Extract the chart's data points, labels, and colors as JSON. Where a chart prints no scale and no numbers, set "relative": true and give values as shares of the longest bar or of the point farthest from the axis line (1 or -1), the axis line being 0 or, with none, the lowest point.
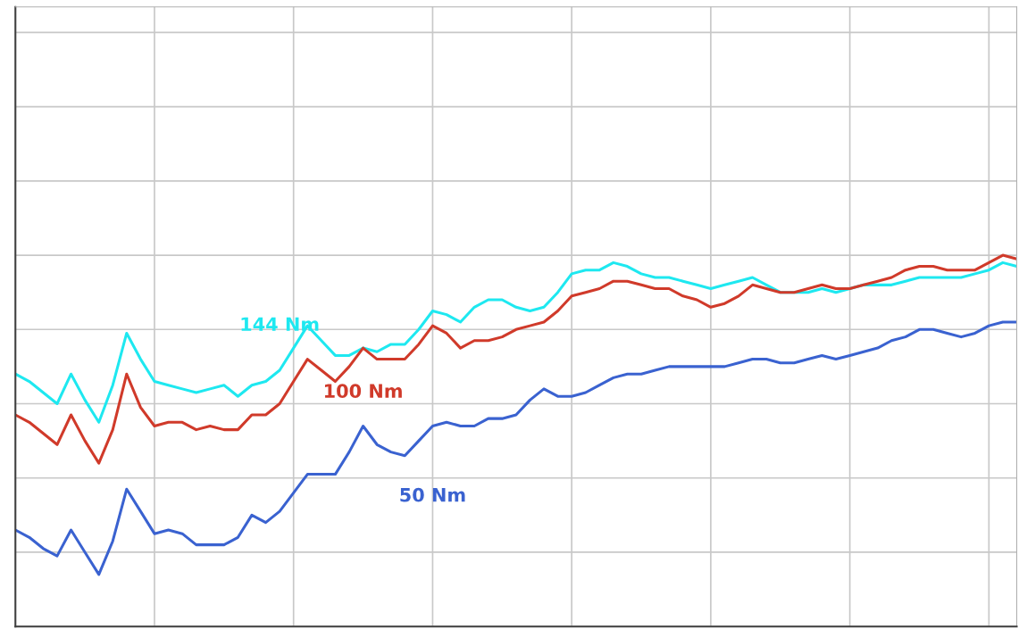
{
  "chart_data": {
    "type": "line",
    "relative": true,
    "grid": true,
    "marker": "none",
    "line_style": "solid",
    "categories": [
      null,
      null,
      null,
      null,
      null,
      null,
      null,
      null,
      null,
      null,
      null,
      null,
      null,
      null,
      null,
      null,
      null,
      null,
      null,
      null,
      null,
      null,
      null,
      null,
      null,
      null,
      null,
      null,
      null,
      null,
      null,
      null,
      null,
      null,
      null,
      null,
      null,
      null,
      null,
      null,
      null,
      null,
      null,
      null,
      null,
      null,
      null,
      null,
      null,
      null,
      null,
      null,
      null,
      null,
      null,
      null,
      null,
      null,
      null,
      null,
      null,
      null,
      null,
      null,
      null,
      null,
      null,
      null,
      null,
      null,
      null,
      null,
      null
    ],
    "series": [
      {
        "name": "144 Nm",
        "color": "#1ee8f0",
        "values": [
          0.68,
          0.66,
          0.63,
          0.6,
          0.68,
          0.61,
          0.55,
          0.65,
          0.79,
          0.72,
          0.66,
          0.65,
          0.64,
          0.63,
          0.64,
          0.65,
          0.62,
          0.65,
          0.66,
          0.69,
          0.75,
          0.81,
          0.77,
          0.73,
          0.73,
          0.75,
          0.74,
          0.76,
          0.76,
          0.8,
          0.85,
          0.84,
          0.82,
          0.86,
          0.88,
          0.88,
          0.86,
          0.85,
          0.86,
          0.9,
          0.95,
          0.96,
          0.96,
          0.98,
          0.97,
          0.95,
          0.94,
          0.94,
          0.93,
          0.92,
          0.91,
          0.92,
          0.93,
          0.94,
          0.92,
          0.9,
          0.9,
          0.9,
          0.91,
          0.9,
          0.91,
          0.92,
          0.92,
          0.92,
          0.93,
          0.94,
          0.94,
          0.94,
          0.94,
          0.95,
          0.96,
          0.98,
          0.97
        ]
      },
      {
        "name": "100 Nm",
        "color": "#d03a2a",
        "values": [
          0.57,
          0.55,
          0.52,
          0.49,
          0.57,
          0.5,
          0.44,
          0.53,
          0.68,
          0.59,
          0.54,
          0.55,
          0.55,
          0.53,
          0.54,
          0.53,
          0.53,
          0.57,
          0.57,
          0.6,
          0.66,
          0.72,
          0.69,
          0.66,
          0.7,
          0.75,
          0.72,
          0.72,
          0.72,
          0.76,
          0.81,
          0.79,
          0.75,
          0.77,
          0.77,
          0.78,
          0.8,
          0.81,
          0.82,
          0.85,
          0.89,
          0.9,
          0.91,
          0.93,
          0.93,
          0.92,
          0.91,
          0.91,
          0.89,
          0.88,
          0.86,
          0.87,
          0.89,
          0.92,
          0.91,
          0.9,
          0.9,
          0.91,
          0.92,
          0.91,
          0.91,
          0.92,
          0.93,
          0.94,
          0.96,
          0.97,
          0.97,
          0.96,
          0.96,
          0.96,
          0.98,
          1.0,
          0.99
        ]
      },
      {
        "name": "50 Nm",
        "color": "#3a62d0",
        "values": [
          0.26,
          0.24,
          0.21,
          0.19,
          0.26,
          0.2,
          0.14,
          0.23,
          0.37,
          0.31,
          0.25,
          0.26,
          0.25,
          0.22,
          0.22,
          0.22,
          0.24,
          0.3,
          0.28,
          0.31,
          0.36,
          0.41,
          0.41,
          0.41,
          0.47,
          0.54,
          0.49,
          0.47,
          0.46,
          0.5,
          0.54,
          0.55,
          0.54,
          0.54,
          0.56,
          0.56,
          0.57,
          0.61,
          0.64,
          0.62,
          0.62,
          0.63,
          0.65,
          0.67,
          0.68,
          0.68,
          0.69,
          0.7,
          0.7,
          0.7,
          0.7,
          0.7,
          0.71,
          0.72,
          0.72,
          0.71,
          0.71,
          0.72,
          0.73,
          0.72,
          0.73,
          0.74,
          0.75,
          0.77,
          0.78,
          0.8,
          0.8,
          0.79,
          0.78,
          0.79,
          0.81,
          0.82,
          0.82
        ]
      }
    ]
  }
}
